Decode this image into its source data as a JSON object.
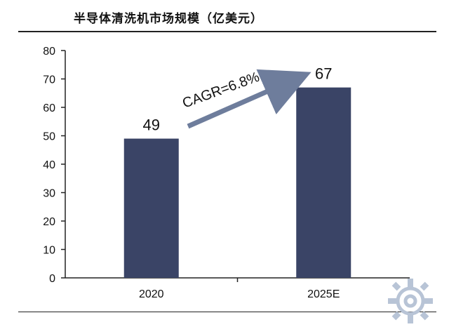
{
  "chart_data": {
    "type": "bar",
    "title": "半导体清洗机市场规模（亿美元）",
    "categories": [
      "2020",
      "2025E"
    ],
    "values": [
      49,
      67
    ],
    "ylim": [
      0,
      80
    ],
    "yticks": [
      0,
      10,
      20,
      30,
      40,
      50,
      60,
      70,
      80
    ],
    "annotation": "CAGR=6.8%",
    "bar_color": "#3a4466",
    "arrow_color": "#6e7d9c",
    "grid": false
  }
}
